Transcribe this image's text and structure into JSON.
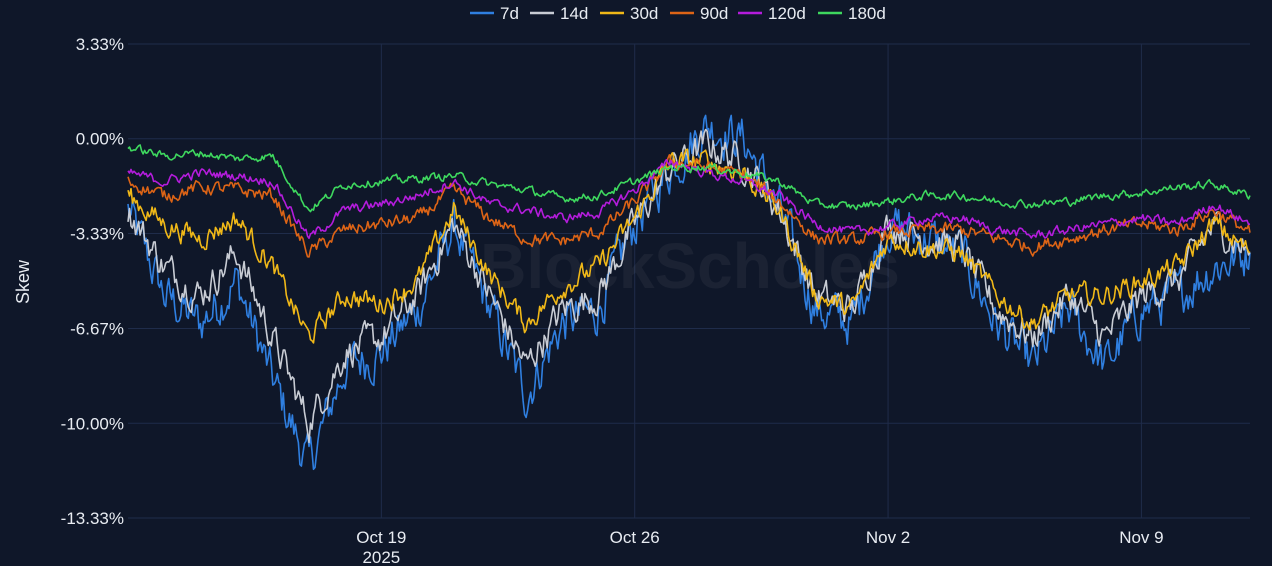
{
  "background_color": "#0f1729",
  "watermark": "BlockScholes",
  "chart_data": {
    "type": "line",
    "ylabel": "Skew",
    "xlabel": "",
    "title": "",
    "x_range": [
      "2025-10-12",
      "2025-11-12"
    ],
    "ylim": [
      -13.33,
      3.33
    ],
    "y_ticks": [
      {
        "value": 3.33,
        "label": "3.33%"
      },
      {
        "value": 0.0,
        "label": "0.00%"
      },
      {
        "value": -3.33,
        "label": "-3.33%"
      },
      {
        "value": -6.67,
        "label": "-6.67%"
      },
      {
        "value": -10.0,
        "label": "-10.00%"
      },
      {
        "value": -13.33,
        "label": "-13.33%"
      }
    ],
    "x_ticks": [
      {
        "value": "2025-10-19",
        "label": "Oct 19",
        "sublabel": "2025"
      },
      {
        "value": "2025-10-26",
        "label": "Oct 26",
        "sublabel": ""
      },
      {
        "value": "2025-11-02",
        "label": "Nov 2",
        "sublabel": ""
      },
      {
        "value": "2025-11-09",
        "label": "Nov 9",
        "sublabel": ""
      }
    ],
    "grid": true,
    "legend_position": "top-center",
    "series": [
      {
        "name": "7d",
        "color": "#2f7fe0",
        "noise": 0.85,
        "x": [
          "2025-10-12",
          "2025-10-13",
          "2025-10-14",
          "2025-10-15",
          "2025-10-16",
          "2025-10-17",
          "2025-10-18",
          "2025-10-19",
          "2025-10-20",
          "2025-10-21",
          "2025-10-22",
          "2025-10-23",
          "2025-10-24",
          "2025-10-25",
          "2025-10-26",
          "2025-10-27",
          "2025-10-28",
          "2025-10-29",
          "2025-10-30",
          "2025-10-31",
          "2025-11-01",
          "2025-11-02",
          "2025-11-03",
          "2025-11-04",
          "2025-11-05",
          "2025-11-06",
          "2025-11-07",
          "2025-11-08",
          "2025-11-09",
          "2025-11-10",
          "2025-11-11",
          "2025-11-12"
        ],
        "y": [
          -2.5,
          -5.5,
          -6.5,
          -5.0,
          -8.5,
          -11.5,
          -8.0,
          -7.5,
          -6.0,
          -3.0,
          -6.0,
          -9.0,
          -6.5,
          -6.0,
          -3.0,
          -1.0,
          0.5,
          0.0,
          -2.5,
          -6.0,
          -6.5,
          -3.0,
          -3.5,
          -4.0,
          -6.5,
          -8.0,
          -6.0,
          -8.0,
          -6.0,
          -5.5,
          -4.5,
          -4.0
        ]
      },
      {
        "name": "14d",
        "color": "#c8ccd4",
        "noise": 0.6,
        "x": [
          "2025-10-12",
          "2025-10-13",
          "2025-10-14",
          "2025-10-15",
          "2025-10-16",
          "2025-10-17",
          "2025-10-18",
          "2025-10-19",
          "2025-10-20",
          "2025-10-21",
          "2025-10-22",
          "2025-10-23",
          "2025-10-24",
          "2025-10-25",
          "2025-10-26",
          "2025-10-27",
          "2025-10-28",
          "2025-10-29",
          "2025-10-30",
          "2025-10-31",
          "2025-11-01",
          "2025-11-02",
          "2025-11-03",
          "2025-11-04",
          "2025-11-05",
          "2025-11-06",
          "2025-11-07",
          "2025-11-08",
          "2025-11-09",
          "2025-11-10",
          "2025-11-11",
          "2025-11-12"
        ],
        "y": [
          -2.5,
          -4.5,
          -5.5,
          -4.0,
          -7.0,
          -10.0,
          -7.5,
          -7.0,
          -5.5,
          -3.0,
          -5.5,
          -8.0,
          -6.0,
          -5.5,
          -3.0,
          -1.0,
          -0.2,
          -0.8,
          -2.5,
          -5.5,
          -6.0,
          -3.0,
          -3.5,
          -3.8,
          -6.0,
          -7.0,
          -5.5,
          -7.0,
          -5.5,
          -5.0,
          -3.0,
          -4.0
        ]
      },
      {
        "name": "30d",
        "color": "#f0b818",
        "noise": 0.4,
        "x": [
          "2025-10-12",
          "2025-10-13",
          "2025-10-14",
          "2025-10-15",
          "2025-10-16",
          "2025-10-17",
          "2025-10-18",
          "2025-10-19",
          "2025-10-20",
          "2025-10-21",
          "2025-10-22",
          "2025-10-23",
          "2025-10-24",
          "2025-10-25",
          "2025-10-26",
          "2025-10-27",
          "2025-10-28",
          "2025-10-29",
          "2025-10-30",
          "2025-10-31",
          "2025-11-01",
          "2025-11-02",
          "2025-11-03",
          "2025-11-04",
          "2025-11-05",
          "2025-11-06",
          "2025-11-07",
          "2025-11-08",
          "2025-11-09",
          "2025-11-10",
          "2025-11-11",
          "2025-11-12"
        ],
        "y": [
          -2.0,
          -3.0,
          -3.5,
          -2.8,
          -4.5,
          -7.0,
          -5.5,
          -5.8,
          -5.0,
          -2.5,
          -4.8,
          -6.5,
          -5.2,
          -4.5,
          -2.8,
          -0.8,
          -0.8,
          -1.2,
          -2.5,
          -5.5,
          -6.0,
          -3.5,
          -3.8,
          -4.0,
          -5.5,
          -6.5,
          -5.5,
          -5.5,
          -5.0,
          -4.5,
          -3.0,
          -4.0
        ]
      },
      {
        "name": "90d",
        "color": "#dd6416",
        "noise": 0.25,
        "x": [
          "2025-10-12",
          "2025-10-13",
          "2025-10-14",
          "2025-10-15",
          "2025-10-16",
          "2025-10-17",
          "2025-10-18",
          "2025-10-19",
          "2025-10-20",
          "2025-10-21",
          "2025-10-22",
          "2025-10-23",
          "2025-10-24",
          "2025-10-25",
          "2025-10-26",
          "2025-10-27",
          "2025-10-28",
          "2025-10-29",
          "2025-10-30",
          "2025-10-31",
          "2025-11-01",
          "2025-11-02",
          "2025-11-03",
          "2025-11-04",
          "2025-11-05",
          "2025-11-06",
          "2025-11-07",
          "2025-11-08",
          "2025-11-09",
          "2025-11-10",
          "2025-11-11",
          "2025-11-12"
        ],
        "y": [
          -1.5,
          -2.0,
          -1.7,
          -1.8,
          -2.0,
          -4.0,
          -3.2,
          -3.0,
          -2.8,
          -1.8,
          -2.8,
          -3.5,
          -3.6,
          -3.3,
          -2.2,
          -0.8,
          -1.0,
          -1.3,
          -2.2,
          -3.5,
          -3.6,
          -3.3,
          -3.2,
          -3.2,
          -3.5,
          -3.8,
          -3.5,
          -3.2,
          -3.0,
          -3.2,
          -2.5,
          -3.3
        ]
      },
      {
        "name": "120d",
        "color": "#b41cdc",
        "noise": 0.18,
        "x": [
          "2025-10-12",
          "2025-10-13",
          "2025-10-14",
          "2025-10-15",
          "2025-10-16",
          "2025-10-17",
          "2025-10-18",
          "2025-10-19",
          "2025-10-20",
          "2025-10-21",
          "2025-10-22",
          "2025-10-23",
          "2025-10-24",
          "2025-10-25",
          "2025-10-26",
          "2025-10-27",
          "2025-10-28",
          "2025-10-29",
          "2025-10-30",
          "2025-10-31",
          "2025-11-01",
          "2025-11-02",
          "2025-11-03",
          "2025-11-04",
          "2025-11-05",
          "2025-11-06",
          "2025-11-07",
          "2025-11-08",
          "2025-11-09",
          "2025-11-10",
          "2025-11-11",
          "2025-11-12"
        ],
        "y": [
          -1.2,
          -1.5,
          -1.2,
          -1.3,
          -1.5,
          -3.5,
          -2.5,
          -2.3,
          -2.0,
          -1.5,
          -2.3,
          -2.5,
          -2.8,
          -2.6,
          -1.8,
          -0.8,
          -1.2,
          -1.5,
          -2.0,
          -3.0,
          -3.3,
          -3.1,
          -2.8,
          -2.8,
          -3.2,
          -3.4,
          -3.2,
          -3.0,
          -2.8,
          -3.0,
          -2.3,
          -3.0
        ]
      },
      {
        "name": "180d",
        "color": "#3ed85e",
        "noise": 0.15,
        "x": [
          "2025-10-12",
          "2025-10-13",
          "2025-10-14",
          "2025-10-15",
          "2025-10-16",
          "2025-10-17",
          "2025-10-18",
          "2025-10-19",
          "2025-10-20",
          "2025-10-21",
          "2025-10-22",
          "2025-10-23",
          "2025-10-24",
          "2025-10-25",
          "2025-10-26",
          "2025-10-27",
          "2025-10-28",
          "2025-10-29",
          "2025-10-30",
          "2025-10-31",
          "2025-11-01",
          "2025-11-02",
          "2025-11-03",
          "2025-11-04",
          "2025-11-05",
          "2025-11-06",
          "2025-11-07",
          "2025-11-08",
          "2025-11-09",
          "2025-11-10",
          "2025-11-11",
          "2025-11-12"
        ],
        "y": [
          -0.3,
          -0.6,
          -0.5,
          -0.7,
          -0.6,
          -2.5,
          -1.6,
          -1.5,
          -1.4,
          -1.3,
          -1.6,
          -1.8,
          -2.1,
          -2.0,
          -1.5,
          -1.0,
          -1.0,
          -1.2,
          -1.5,
          -2.3,
          -2.4,
          -2.2,
          -2.0,
          -2.0,
          -2.2,
          -2.3,
          -2.2,
          -2.0,
          -1.9,
          -1.7,
          -1.6,
          -2.0
        ]
      }
    ]
  }
}
